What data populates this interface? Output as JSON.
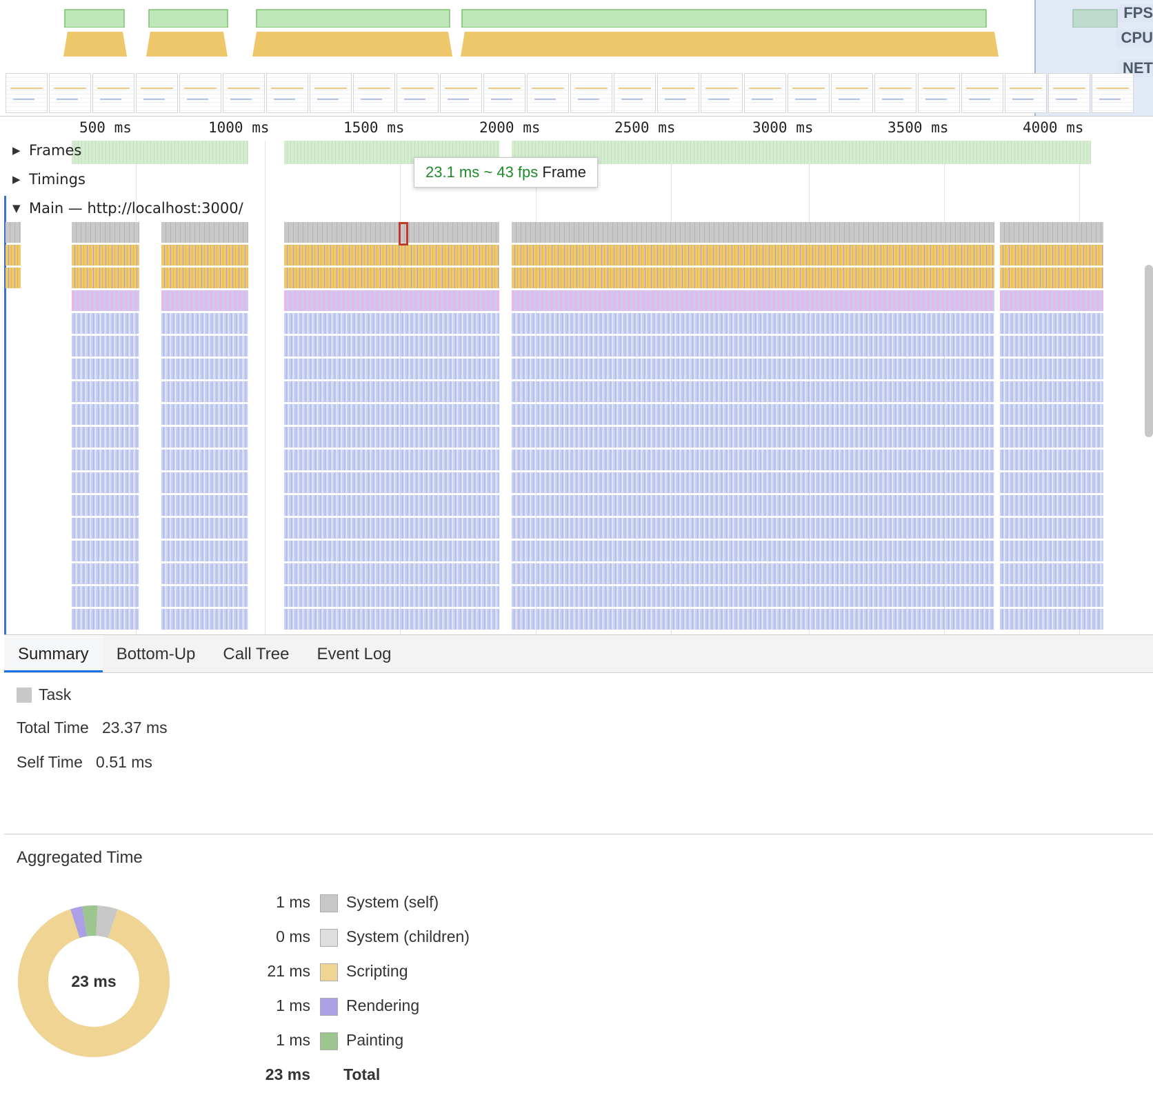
{
  "overview": {
    "fps_label": "FPS",
    "cpu_label": "CPU",
    "net_label": "NET",
    "colors": {
      "fps": "#bfe6b9",
      "cpu": "#efc76b",
      "selection": "#d7e0f3"
    }
  },
  "ruler": {
    "ticks": [
      "500 ms",
      "1000 ms",
      "1500 ms",
      "2000 ms",
      "2500 ms",
      "3000 ms",
      "3500 ms",
      "4000 ms"
    ]
  },
  "tracks": {
    "frames_label": "Frames",
    "timings_label": "Timings",
    "main_label": "Main — http://localhost:3000/"
  },
  "tooltip": {
    "duration": "23.1 ms ~ 43 fps",
    "label": "Frame"
  },
  "tabs": [
    {
      "label": "Summary",
      "active": true
    },
    {
      "label": "Bottom-Up",
      "active": false
    },
    {
      "label": "Call Tree",
      "active": false
    },
    {
      "label": "Event Log",
      "active": false
    }
  ],
  "summary": {
    "title": "Task",
    "total_time_label": "Total Time",
    "total_time_value": "23.37 ms",
    "self_time_label": "Self Time",
    "self_time_value": "0.51 ms",
    "aggregated_label": "Aggregated Time",
    "donut_center": "23 ms",
    "breakdown": [
      {
        "value": "1 ms",
        "label": "System (self)",
        "color": "#c8c8c8",
        "amount": 1
      },
      {
        "value": "0 ms",
        "label": "System (children)",
        "color": "#dedede",
        "amount": 0
      },
      {
        "value": "21 ms",
        "label": "Scripting",
        "color": "#efd493",
        "amount": 21
      },
      {
        "value": "1 ms",
        "label": "Rendering",
        "color": "#ab9fe6",
        "amount": 0.6
      },
      {
        "value": "1 ms",
        "label": "Painting",
        "color": "#9cc58f",
        "amount": 0.75
      }
    ],
    "total_value": "23 ms",
    "total_label": "Total"
  }
}
